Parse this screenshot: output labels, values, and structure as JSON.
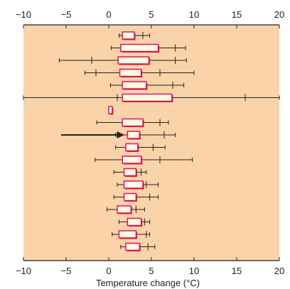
{
  "chart_data": {
    "type": "boxplot",
    "title": "",
    "xlabel": "Temperature change (°C)",
    "ylabel": "",
    "xlim": [
      -10,
      20
    ],
    "ticks": [
      -10,
      -5,
      0,
      5,
      10,
      15,
      20
    ],
    "tick_labels": [
      "−10",
      "−5",
      "0",
      "5",
      "10",
      "15",
      "20"
    ],
    "grid": false,
    "arrow_points_to_row": 8,
    "colors": {
      "plot_background": "#fbd3a8",
      "box_fill": "#fffde0",
      "box_outline": "#e0106e",
      "box_shadow": "#c41a2a",
      "whisker": "#222222",
      "arrow": "#222222"
    },
    "boxes": [
      {
        "whisker_low": 1.2,
        "q1": 1.6,
        "q3": 3.0,
        "whisker_high": 4.8,
        "marker": 4.0
      },
      {
        "whisker_low": 0.3,
        "q1": 1.4,
        "q3": 5.8,
        "whisker_high": 9.0,
        "marker": 7.8
      },
      {
        "whisker_low": -5.8,
        "q1": 1.1,
        "q3": 4.7,
        "whisker_high": 9.1,
        "marker": -2.0,
        "marker2": 7.8
      },
      {
        "whisker_low": -2.8,
        "q1": 1.3,
        "q3": 3.8,
        "whisker_high": 10.0,
        "marker": -1.5,
        "marker2": 6.0
      },
      {
        "whisker_low": 0.2,
        "q1": 1.6,
        "q3": 4.4,
        "whisker_high": 8.8,
        "marker": 7.5
      },
      {
        "whisker_low": -10.0,
        "q1": 1.6,
        "q3": 7.4,
        "whisker_high": 20.0,
        "marker": 1.0,
        "marker2": 16.0
      },
      {
        "whisker_low": 0.0,
        "q1": 0.0,
        "q3": 0.4,
        "whisker_high": 0.4
      },
      {
        "whisker_low": -1.4,
        "q1": 1.6,
        "q3": 4.0,
        "whisker_high": 7.0,
        "marker": 6.0
      },
      {
        "whisker_low": 0.8,
        "q1": 2.2,
        "q3": 3.6,
        "whisker_high": 7.8,
        "marker": 6.5
      },
      {
        "whisker_low": 0.8,
        "q1": 2.0,
        "q3": 3.4,
        "whisker_high": 6.6,
        "marker": 5.2
      },
      {
        "whisker_low": -1.6,
        "q1": 1.6,
        "q3": 3.8,
        "whisker_high": 9.8,
        "marker": 6.0
      },
      {
        "whisker_low": 0.6,
        "q1": 1.8,
        "q3": 3.2,
        "whisker_high": 4.4,
        "marker": 3.8
      },
      {
        "whisker_low": 1.0,
        "q1": 1.8,
        "q3": 4.0,
        "whisker_high": 5.8,
        "marker": 4.4
      },
      {
        "whisker_low": 0.6,
        "q1": 1.8,
        "q3": 3.2,
        "whisker_high": 5.8,
        "marker": 4.8
      },
      {
        "whisker_low": -0.2,
        "q1": 1.0,
        "q3": 2.6,
        "whisker_high": 4.2,
        "marker": 3.2
      },
      {
        "whisker_low": 1.2,
        "q1": 2.2,
        "q3": 3.8,
        "whisker_high": 4.8,
        "marker": 4.2
      },
      {
        "whisker_low": 0.4,
        "q1": 1.2,
        "q3": 3.2,
        "whisker_high": 4.8,
        "marker": 4.4
      },
      {
        "whisker_low": 1.4,
        "q1": 2.0,
        "q3": 3.6,
        "whisker_high": 5.4,
        "marker": 4.6
      }
    ]
  }
}
